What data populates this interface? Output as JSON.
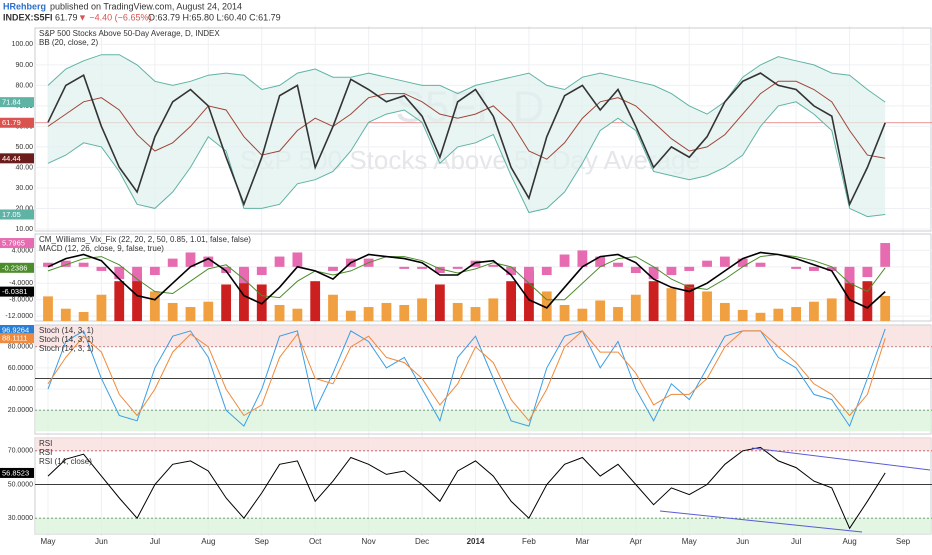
{
  "header": {
    "author": "HRehberg",
    "published": "published on TradingView.com, August 24, 2014",
    "symbol": "INDEX:S5FI",
    "last": "61.79",
    "change": "▼ −4.40 (−6.65%)",
    "ohlc": "O:63.79 H:65.80 L:60.40 C:61.79"
  },
  "chart_data": [
    {
      "type": "bands",
      "labels": [
        "S&P 500 Stocks Above 50-Day Average, D, INDEX",
        "BB (20, close, 2)"
      ],
      "watermark": [
        "S5FI, D",
        "S&P 500 Stocks Above 50-Day Average"
      ],
      "ylim": [
        9,
        108
      ],
      "yticks": [
        {
          "value": 10,
          "label": "10.00"
        },
        {
          "value": 20,
          "label": "20.00"
        },
        {
          "value": 30,
          "label": "30.00"
        },
        {
          "value": 40,
          "label": "40.00"
        },
        {
          "value": 50,
          "label": "50.00"
        },
        {
          "value": 60,
          "label": "60.00"
        },
        {
          "value": 70,
          "label": "70.00"
        },
        {
          "value": 80,
          "label": "80.00"
        },
        {
          "value": 90,
          "label": "90.00"
        },
        {
          "value": 100,
          "label": "100.00"
        }
      ],
      "band_fill": "#dff1ee",
      "lines": [
        {
          "color": "#5fb3a5",
          "last_label": true,
          "values": [
            80,
            88,
            92,
            95,
            95,
            90,
            82,
            80,
            82,
            85,
            86,
            85,
            78,
            80,
            86,
            88,
            84,
            84,
            86,
            84,
            82,
            80,
            80,
            76,
            80,
            82,
            84,
            86,
            80,
            78,
            84,
            86,
            84,
            82,
            80,
            76,
            70,
            66,
            72,
            84,
            90,
            94,
            92,
            90,
            86,
            85,
            78,
            71.84,
            null
          ]
        },
        {
          "color": "#5fb3a5",
          "last_label": true,
          "values": [
            42,
            46,
            52,
            50,
            38,
            22,
            20,
            28,
            40,
            55,
            48,
            20,
            20,
            22,
            32,
            34,
            38,
            48,
            62,
            66,
            68,
            62,
            42,
            50,
            52,
            56,
            36,
            18,
            20,
            28,
            42,
            58,
            64,
            58,
            38,
            36,
            34,
            36,
            40,
            46,
            60,
            70,
            72,
            66,
            58,
            20,
            16,
            17.05,
            null
          ]
        },
        {
          "color": "#a0453a",
          "last_label": true,
          "label_color": "#6b1d1d",
          "values": [
            60,
            66,
            72,
            74,
            68,
            56,
            48,
            52,
            60,
            70,
            68,
            55,
            46,
            48,
            58,
            64,
            60,
            66,
            74,
            76,
            76,
            72,
            66,
            64,
            66,
            70,
            62,
            48,
            44,
            52,
            64,
            72,
            74,
            70,
            62,
            54,
            48,
            50,
            56,
            66,
            76,
            82,
            82,
            78,
            72,
            58,
            46,
            44.44,
            null
          ]
        },
        {
          "color": "#333333",
          "width": 1.6,
          "last_label": true,
          "label_color": "#d9534f",
          "values": [
            62,
            80,
            85,
            60,
            40,
            28,
            55,
            72,
            78,
            70,
            45,
            22,
            45,
            75,
            80,
            40,
            60,
            83,
            78,
            72,
            75,
            65,
            45,
            72,
            78,
            65,
            40,
            25,
            55,
            75,
            80,
            68,
            78,
            60,
            40,
            50,
            45,
            55,
            72,
            82,
            86,
            80,
            78,
            70,
            65,
            22,
            40,
            61.79,
            null
          ]
        }
      ],
      "levels": [
        {
          "value": 61.79,
          "color": "#e57373",
          "dash": false
        }
      ]
    },
    {
      "type": "macd",
      "labels": [
        "CM_Williams_Vix_Fix (22, 20, 2, 50, 0.85, 1.01, false, false)",
        "MACD (12, 26, close, 9, false, true)"
      ],
      "ylim": [
        -13.2,
        8
      ],
      "yticks": [
        {
          "value": -12,
          "label": "-12.0000"
        },
        {
          "value": -8,
          "label": "-8.0000"
        },
        {
          "value": -4,
          "label": "-4.0000"
        },
        {
          "value": 0,
          "label": "0.0000"
        },
        {
          "value": 4,
          "label": "4.0000"
        }
      ],
      "bars": [
        {
          "baseline": "bottom",
          "values": [
            -7.2,
            -10.2,
            -11,
            -6.8,
            -3.5,
            -1.5,
            -6,
            -8.8,
            -9.8,
            -8.5,
            -4.3,
            -0.5,
            -4.3,
            -9.3,
            -10.2,
            -3.5,
            -6.8,
            -10.7,
            -9.8,
            -8.8,
            -9.3,
            -7.7,
            -4.3,
            -8.8,
            -9.8,
            -7.7,
            -3.5,
            -1,
            -6,
            -9.3,
            -10.2,
            -8.2,
            -9.8,
            -6.8,
            -3.5,
            -5.2,
            -4.3,
            -6,
            -8.8,
            -10.5,
            -11.2,
            -10.2,
            -9.8,
            -8.5,
            -7.7,
            -0.5,
            -3.5,
            -7.1,
            null
          ],
          "colors": [
            "#f0a040",
            "#f0a040",
            "#f0a040",
            "#f0a040",
            "#cc1f1f",
            "#cc1f1f",
            "#f0a040",
            "#f0a040",
            "#f0a040",
            "#f0a040",
            "#cc1f1f",
            "#cc1f1f",
            "#cc1f1f",
            "#f0a040",
            "#f0a040",
            "#cc1f1f",
            "#f0a040",
            "#f0a040",
            "#f0a040",
            "#f0a040",
            "#f0a040",
            "#f0a040",
            "#cc1f1f",
            "#f0a040",
            "#f0a040",
            "#f0a040",
            "#cc1f1f",
            "#cc1f1f",
            "#f0a040",
            "#f0a040",
            "#f0a040",
            "#f0a040",
            "#f0a040",
            "#f0a040",
            "#cc1f1f",
            "#f0a040",
            "#cc1f1f",
            "#f0a040",
            "#f0a040",
            "#f0a040",
            "#f0a040",
            "#f0a040",
            "#f0a040",
            "#f0a040",
            "#f0a040",
            "#cc1f1f",
            "#cc1f1f",
            "#f0a040",
            "#f0a040"
          ]
        },
        {
          "baseline": "zero",
          "color": "#e66bb0",
          "last_label": true,
          "values": [
            1,
            1.5,
            1,
            -1,
            -3,
            -3.5,
            -2,
            2,
            3.5,
            2.5,
            -1.5,
            -4,
            -2,
            2.5,
            3.5,
            0,
            -1,
            2,
            2,
            0,
            -0.5,
            -0.5,
            -1.5,
            -0.5,
            1.5,
            0.5,
            -2,
            -4,
            -2,
            3,
            4,
            2.5,
            1,
            -1.5,
            -3,
            -2,
            -1,
            1.5,
            2.5,
            2,
            1,
            0,
            -0.5,
            -1,
            -1,
            -4,
            -2.5,
            5.7965,
            null
          ]
        }
      ],
      "lines": [
        {
          "color": "#4c8c2b",
          "last_label": true,
          "values": [
            -1,
            0.5,
            2,
            2.5,
            0.5,
            -3,
            -6,
            -6.5,
            -3.5,
            -0.5,
            0.5,
            -3,
            -7,
            -7.5,
            -3.5,
            -1,
            -2,
            -1,
            1,
            2.5,
            2.5,
            1.5,
            -0.5,
            -1.5,
            -0.5,
            1,
            0,
            -4,
            -8,
            -8,
            -4,
            0,
            2,
            2.5,
            0,
            -3,
            -5,
            -5.5,
            -3,
            0,
            2.5,
            3,
            2.5,
            1.5,
            0,
            -4,
            -6,
            -0.2386,
            null
          ]
        },
        {
          "color": "#000000",
          "width": 1.6,
          "last_label": true,
          "values": [
            0,
            2,
            3,
            1.5,
            -3,
            -7,
            -8,
            -4,
            0,
            2,
            -1,
            -7,
            -9,
            -5,
            0,
            -1,
            -3,
            1,
            3,
            2.5,
            2,
            1,
            -2,
            -2,
            1,
            1.5,
            -2,
            -8,
            -10,
            -5,
            0,
            2.5,
            3,
            1,
            -3,
            -5,
            -6,
            -4,
            -1,
            2,
            3.5,
            3,
            2,
            0.5,
            -1,
            -8,
            -10,
            -6.0381,
            null
          ]
        }
      ]
    },
    {
      "type": "oscillator",
      "labels": [
        "Stoch (14, 3, 1)",
        "Stoch (14, 3, 1)",
        "Stoch (14, 3, 1)"
      ],
      "ylim": [
        -2.5,
        100.6
      ],
      "yticks": [
        {
          "value": 20,
          "label": "20.0000"
        },
        {
          "value": 40,
          "label": "40.0000"
        },
        {
          "value": 60,
          "label": "60.0000"
        },
        {
          "value": 80,
          "label": "80.0000"
        }
      ],
      "zones": [
        {
          "from": 80,
          "to": 100,
          "color": "#f9dede"
        },
        {
          "from": 0,
          "to": 20,
          "color": "#dcf2dc"
        }
      ],
      "levels": [
        {
          "value": 80,
          "color": "#c06060",
          "dash": true
        },
        {
          "value": 50,
          "color": "#000000",
          "dash": false
        },
        {
          "value": 20,
          "color": "#5a9a5a",
          "dash": true
        }
      ],
      "lines": [
        {
          "color": "#3c9ee5",
          "last_label": true,
          "label_color": "#2a7fd4",
          "values": [
            40,
            85,
            95,
            50,
            15,
            10,
            60,
            90,
            95,
            70,
            20,
            5,
            40,
            90,
            95,
            20,
            55,
            95,
            85,
            60,
            70,
            40,
            10,
            70,
            90,
            50,
            10,
            5,
            60,
            90,
            95,
            60,
            85,
            40,
            10,
            45,
            30,
            60,
            90,
            95,
            95,
            70,
            60,
            35,
            30,
            5,
            50,
            96.9264,
            null
          ]
        },
        {
          "color": "#f08a3c",
          "last_label": true,
          "values": [
            45,
            70,
            90,
            75,
            35,
            15,
            40,
            75,
            92,
            80,
            40,
            15,
            25,
            70,
            92,
            50,
            45,
            80,
            90,
            70,
            65,
            50,
            25,
            45,
            80,
            65,
            30,
            10,
            40,
            80,
            95,
            75,
            75,
            55,
            25,
            35,
            35,
            50,
            80,
            95,
            95,
            80,
            65,
            45,
            35,
            15,
            35,
            88.1111,
            null
          ]
        }
      ]
    },
    {
      "type": "oscillator",
      "labels": [
        "RSI",
        "RSI",
        "RSI (14, close)"
      ],
      "ylim": [
        20.6,
        77.6
      ],
      "yticks": [
        {
          "value": 30,
          "label": "30.0000"
        },
        {
          "value": 50,
          "label": "50.0000"
        },
        {
          "value": 70,
          "label": "70.0000"
        }
      ],
      "zones": [
        {
          "from": 70,
          "to": 77.6,
          "color": "#f9dede"
        },
        {
          "from": 20.6,
          "to": 30,
          "color": "#dcf2dc"
        }
      ],
      "levels": [
        {
          "value": 70,
          "color": "#d05050",
          "dash": true
        },
        {
          "value": 50,
          "color": "#000000",
          "dash": false
        },
        {
          "value": 30,
          "color": "#5a9a5a",
          "dash": true
        }
      ],
      "lines": [
        {
          "color": "#000000",
          "last_label": true,
          "values": [
            55,
            65,
            68,
            55,
            42,
            30,
            50,
            62,
            64,
            58,
            42,
            30,
            45,
            62,
            64,
            40,
            52,
            66,
            62,
            56,
            58,
            50,
            40,
            58,
            64,
            55,
            40,
            30,
            50,
            62,
            66,
            55,
            62,
            50,
            38,
            48,
            44,
            50,
            62,
            70,
            72,
            64,
            60,
            52,
            48,
            24,
            40,
            56.8523,
            null
          ]
        }
      ],
      "categories": [
        "May",
        null,
        null,
        "Jun",
        null,
        null,
        "Jul",
        null,
        null,
        "Aug",
        null,
        null,
        "Sep",
        null,
        null,
        "Oct",
        null,
        null,
        "Nov",
        null,
        null,
        "Dec",
        null,
        null,
        "2014",
        null,
        null,
        "Feb",
        null,
        null,
        "Mar",
        null,
        null,
        "Apr",
        null,
        null,
        "May",
        null,
        null,
        "Jun",
        null,
        null,
        "Jul",
        null,
        null,
        "Aug",
        null,
        null,
        "Sep"
      ]
    }
  ]
}
